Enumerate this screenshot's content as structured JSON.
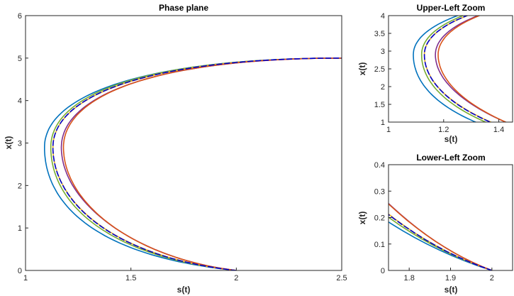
{
  "chart_data": [
    {
      "type": "line",
      "title": "Phase plane",
      "xlabel": "s(t)",
      "ylabel": "x(t)",
      "xlim": [
        1,
        2.5
      ],
      "ylim": [
        0,
        6
      ],
      "xticks": [
        "1",
        "1.5",
        "2",
        "2.5"
      ],
      "yticks": [
        "0",
        "1",
        "2",
        "3",
        "4",
        "5",
        "6"
      ],
      "grid": false,
      "series": [
        {
          "color": "#0072BD",
          "style": "solid",
          "tip": [
            1.09,
            2.9
          ],
          "lower_shape": 0.62,
          "upper_shape": 0.36
        },
        {
          "color": "#77AC30",
          "style": "solid",
          "tip": [
            1.12,
            2.9
          ],
          "lower_shape": 0.7,
          "upper_shape": 0.33
        },
        {
          "color": "#EDB120",
          "style": "solid",
          "tip": [
            1.13,
            2.9
          ],
          "lower_shape": 0.78,
          "upper_shape": 0.44
        },
        {
          "color": "#7E2F8E",
          "style": "solid",
          "tip": [
            1.17,
            2.9
          ],
          "lower_shape": 0.92,
          "upper_shape": 0.55
        },
        {
          "color": "#D95319",
          "style": "solid",
          "tip": [
            1.18,
            2.9
          ],
          "lower_shape": 0.86,
          "upper_shape": 0.52
        },
        {
          "color": "#0000CC",
          "style": "dashed",
          "tip": [
            1.13,
            2.9
          ],
          "lower_shape": 0.76,
          "upper_shape": 0.42
        }
      ],
      "endpoints": {
        "start": [
          2,
          0
        ],
        "end": [
          2.5,
          5
        ]
      }
    },
    {
      "type": "line",
      "title": "Upper-Left Zoom",
      "xlabel": "s(t)",
      "ylabel": "x(t)",
      "xlim": [
        1,
        1.45
      ],
      "ylim": [
        1,
        4
      ],
      "xticks": [
        "1",
        "1.2",
        "1.4"
      ],
      "yticks": [
        "1",
        "1.5",
        "2",
        "2.5",
        "3",
        "3.5",
        "4"
      ],
      "grid": false
    },
    {
      "type": "line",
      "title": "Lower-Left Zoom",
      "xlabel": "s(t)",
      "ylabel": "x(t)",
      "xlim": [
        1.75,
        2.05
      ],
      "ylim": [
        0,
        0.4
      ],
      "xticks": [
        "1.8",
        "1.9",
        "2"
      ],
      "yticks": [
        "0",
        "0.1",
        "0.2",
        "0.3",
        "0.4"
      ],
      "grid": false
    }
  ]
}
